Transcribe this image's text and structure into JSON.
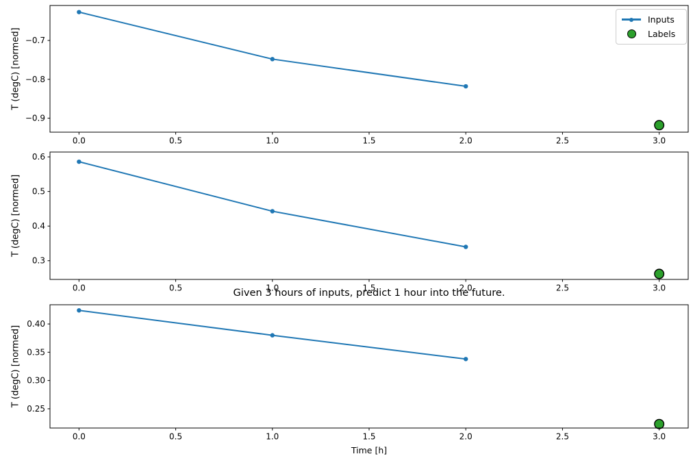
{
  "title": "Given 3 hours of inputs, predict 1 hour into the future.",
  "xlabel": "Time [h]",
  "legend": {
    "position": "upper right",
    "items": [
      {
        "label": "Inputs",
        "marker": "line-with-dot",
        "color": "#1f77b4"
      },
      {
        "label": "Labels",
        "marker": "circle",
        "color": "#2ca02c",
        "edge_color": "#000000"
      }
    ]
  },
  "colors": {
    "inputs": "#1f77b4",
    "labels": "#2ca02c",
    "label_edge": "#000000",
    "spine": "#000000",
    "text": "#000000",
    "legend_border": "#cccccc",
    "background": "#ffffff"
  },
  "chart_data": [
    {
      "type": "line",
      "ylabel": "T (degC) [normed]",
      "xlim": [
        -0.15,
        3.15
      ],
      "ylim": [
        -0.936,
        -0.61
      ],
      "grid": false,
      "xticks": {
        "values": [
          0.0,
          0.5,
          1.0,
          1.5,
          2.0,
          2.5,
          3.0
        ],
        "labels": [
          "0.0",
          "0.5",
          "1.0",
          "1.5",
          "2.0",
          "2.5",
          "3.0"
        ]
      },
      "yticks": {
        "values": [
          -0.7,
          -0.8,
          -0.9
        ],
        "labels": [
          "−0.7",
          "−0.8",
          "−0.9"
        ]
      },
      "series": [
        {
          "name": "Inputs",
          "type": "line",
          "x": [
            0,
            1,
            2
          ],
          "y": [
            -0.627,
            -0.748,
            -0.818
          ]
        },
        {
          "name": "Labels",
          "type": "scatter",
          "x": [
            3
          ],
          "y": [
            -0.918
          ]
        }
      ]
    },
    {
      "type": "line",
      "ylabel": "T (degC) [normed]",
      "xlim": [
        -0.15,
        3.15
      ],
      "ylim": [
        0.246,
        0.614
      ],
      "grid": false,
      "xticks": {
        "values": [
          0.0,
          0.5,
          1.0,
          1.5,
          2.0,
          2.5,
          3.0
        ],
        "labels": [
          "0.0",
          "0.5",
          "1.0",
          "1.5",
          "2.0",
          "2.5",
          "3.0"
        ]
      },
      "yticks": {
        "values": [
          0.6,
          0.5,
          0.4,
          0.3
        ],
        "labels": [
          "0.6",
          "0.5",
          "0.4",
          "0.3"
        ]
      },
      "series": [
        {
          "name": "Inputs",
          "type": "line",
          "x": [
            0,
            1,
            2
          ],
          "y": [
            0.586,
            0.443,
            0.34
          ]
        },
        {
          "name": "Labels",
          "type": "scatter",
          "x": [
            3
          ],
          "y": [
            0.262
          ]
        }
      ]
    },
    {
      "type": "line",
      "ylabel": "T (degC) [normed]",
      "xlim": [
        -0.15,
        3.15
      ],
      "ylim": [
        0.216,
        0.434
      ],
      "grid": false,
      "xticks": {
        "values": [
          0.0,
          0.5,
          1.0,
          1.5,
          2.0,
          2.5,
          3.0
        ],
        "labels": [
          "0.0",
          "0.5",
          "1.0",
          "1.5",
          "2.0",
          "2.5",
          "3.0"
        ]
      },
      "yticks": {
        "values": [
          0.4,
          0.35,
          0.3,
          0.25
        ],
        "labels": [
          "0.40",
          "0.35",
          "0.30",
          "0.25"
        ]
      },
      "series": [
        {
          "name": "Inputs",
          "type": "line",
          "x": [
            0,
            1,
            2
          ],
          "y": [
            0.424,
            0.38,
            0.338
          ]
        },
        {
          "name": "Labels",
          "type": "scatter",
          "x": [
            3
          ],
          "y": [
            0.223
          ]
        }
      ]
    }
  ]
}
